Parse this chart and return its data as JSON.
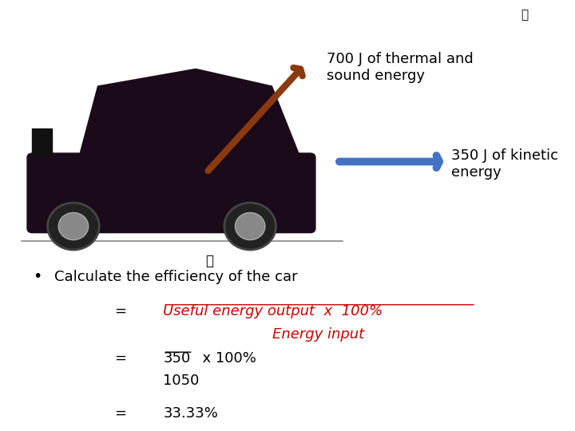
{
  "bg_color": "#ffffff",
  "thermal_label": "700 J of thermal and\nsound energy",
  "kinetic_label": "350 J of kinetic\nenergy",
  "bullet_text": "Calculate the efficiency of the car",
  "eq1_right_line1": "Useful energy output  x  100%",
  "eq1_right_line2": "Energy input",
  "eq2_right_line1": "350  x 100%",
  "eq2_right_line2": "1050",
  "eq3_right": "33.33%",
  "red_color": "#cc0000",
  "black_color": "#000000",
  "arrow_brown": "#8B3A0F",
  "arrow_blue": "#4472C4",
  "label_fontsize": 13,
  "body_fontsize": 13
}
